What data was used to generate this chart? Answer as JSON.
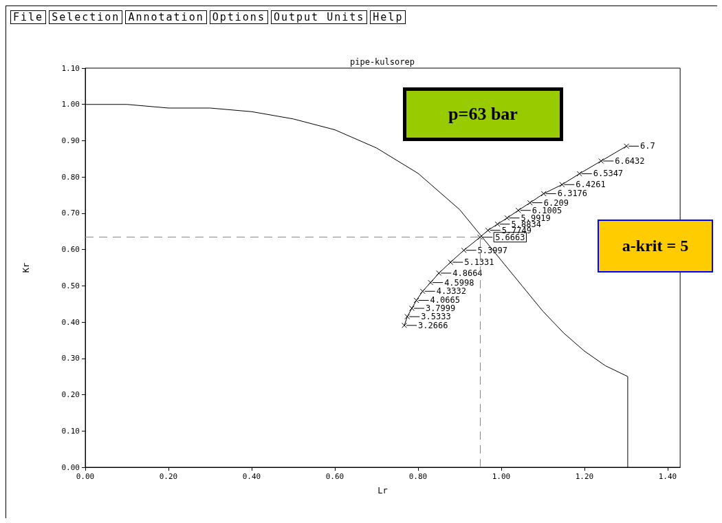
{
  "chart_data": {
    "type": "line",
    "title": "pipe-kulsorep",
    "xlabel": "Lr",
    "ylabel": "Kr",
    "annotations": [
      "File",
      "Selection",
      "Annotation",
      "Options",
      "Output Units",
      "Help",
      "p=63 bar",
      "a-krit = 5",
      {
        "text": "6.7",
        "x": 1.301,
        "y": 0.885
      },
      {
        "text": "6.6432",
        "x": 1.24,
        "y": 0.844
      },
      {
        "text": "6.5347",
        "x": 1.188,
        "y": 0.809
      },
      {
        "text": "6.4261",
        "x": 1.146,
        "y": 0.779
      },
      {
        "text": "6.3176",
        "x": 1.102,
        "y": 0.754
      },
      {
        "text": "6.209",
        "x": 1.069,
        "y": 0.729
      },
      {
        "text": "6.1005",
        "x": 1.041,
        "y": 0.708
      },
      {
        "text": "5.9919",
        "x": 1.014,
        "y": 0.687
      },
      {
        "text": "5.8834",
        "x": 0.991,
        "y": 0.67
      },
      {
        "text": "5.7749",
        "x": 0.968,
        "y": 0.653
      },
      {
        "text": "5.6663",
        "x": 0.949,
        "y": 0.634
      },
      {
        "text": "5.3997",
        "x": 0.91,
        "y": 0.598
      },
      {
        "text": "5.1331",
        "x": 0.878,
        "y": 0.565
      },
      {
        "text": "4.8664",
        "x": 0.85,
        "y": 0.535
      },
      {
        "text": "4.5998",
        "x": 0.83,
        "y": 0.509
      },
      {
        "text": "4.3332",
        "x": 0.811,
        "y": 0.485
      },
      {
        "text": "4.0665",
        "x": 0.796,
        "y": 0.46
      },
      {
        "text": "3.7999",
        "x": 0.785,
        "y": 0.438
      },
      {
        "text": "3.5333",
        "x": 0.774,
        "y": 0.415
      },
      {
        "text": "3.2666",
        "x": 0.767,
        "y": 0.391
      }
    ],
    "xlim": [
      0,
      1.43
    ],
    "ylim": [
      0,
      1.1
    ],
    "xticks": [
      {
        "value": 0,
        "label": "0.00"
      },
      {
        "value": 0.2,
        "label": "0.20"
      },
      {
        "value": 0.4,
        "label": "0.40"
      },
      {
        "value": 0.6,
        "label": "0.60"
      },
      {
        "value": 0.8,
        "label": "0.80"
      },
      {
        "value": 1.0,
        "label": "1.00"
      },
      {
        "value": 1.2,
        "label": "1.20"
      },
      {
        "value": 1.4,
        "label": "1.40"
      }
    ],
    "yticks": [
      {
        "value": 0,
        "label": "0.00"
      },
      {
        "value": 0.1,
        "label": "0.10"
      },
      {
        "value": 0.2,
        "label": "0.20"
      },
      {
        "value": 0.3,
        "label": "0.30"
      },
      {
        "value": 0.4,
        "label": "0.40"
      },
      {
        "value": 0.5,
        "label": "0.50"
      },
      {
        "value": 0.6,
        "label": "0.60"
      },
      {
        "value": 0.7,
        "label": "0.70"
      },
      {
        "value": 0.8,
        "label": "0.80"
      },
      {
        "value": 0.9,
        "label": "0.90"
      },
      {
        "value": 1.0,
        "label": "1.00"
      },
      {
        "value": 1.1,
        "label": "1.10"
      }
    ],
    "grid": false,
    "series": [
      {
        "color": "#000000",
        "marker": "none",
        "x": [
          0,
          0.1,
          0.2,
          0.3,
          0.4,
          0.5,
          0.6,
          0.7,
          0.8,
          0.9,
          0.95,
          1.0,
          1.05,
          1.1,
          1.15,
          1.2,
          1.25,
          1.304,
          1.304
        ],
        "values": [
          1.0,
          1.0,
          0.99,
          0.99,
          0.98,
          0.96,
          0.93,
          0.88,
          0.81,
          0.71,
          0.64,
          0.57,
          0.5,
          0.43,
          0.37,
          0.32,
          0.28,
          0.25,
          0
        ]
      },
      {
        "color": "#000000",
        "marker": "cross",
        "x": [
          1.301,
          1.24,
          1.188,
          1.146,
          1.102,
          1.069,
          1.041,
          1.014,
          0.991,
          0.968,
          0.949,
          0.91,
          0.878,
          0.85,
          0.83,
          0.811,
          0.796,
          0.785,
          0.774,
          0.767
        ],
        "values": [
          0.885,
          0.844,
          0.809,
          0.779,
          0.754,
          0.729,
          0.708,
          0.687,
          0.67,
          0.653,
          0.634,
          0.598,
          0.565,
          0.535,
          0.509,
          0.485,
          0.46,
          0.438,
          0.415,
          0.391
        ]
      }
    ],
    "ref_lines": [
      {
        "axis": "y",
        "value": 0.634,
        "color": "#888888",
        "line_style": "dashed"
      },
      {
        "axis": "x",
        "value": 0.949,
        "color": "#888888",
        "line_style": "dashed"
      }
    ]
  }
}
